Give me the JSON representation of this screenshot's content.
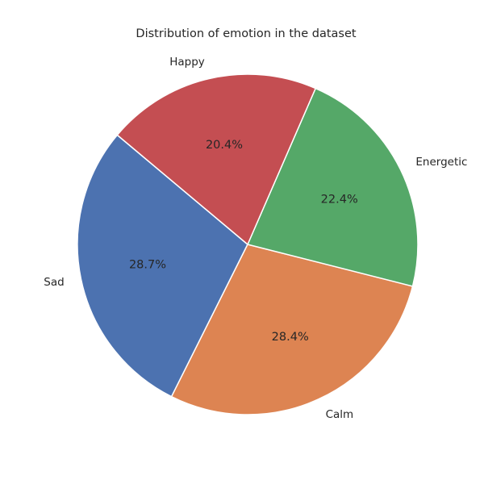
{
  "chart_data": {
    "type": "pie",
    "title": "Distribution of emotion in the dataset",
    "labels": [
      "Sad",
      "Calm",
      "Energetic",
      "Happy"
    ],
    "values": [
      28.7,
      28.4,
      22.4,
      20.4
    ],
    "percent_labels": [
      "28.7%",
      "28.4%",
      "22.4%",
      "20.4%"
    ],
    "colors": [
      "#4c72b0",
      "#dd8452",
      "#55a868",
      "#c44e52"
    ],
    "start_angle_deg": 140,
    "direction": "counterclockwise",
    "edge_color": "#ffffff"
  }
}
